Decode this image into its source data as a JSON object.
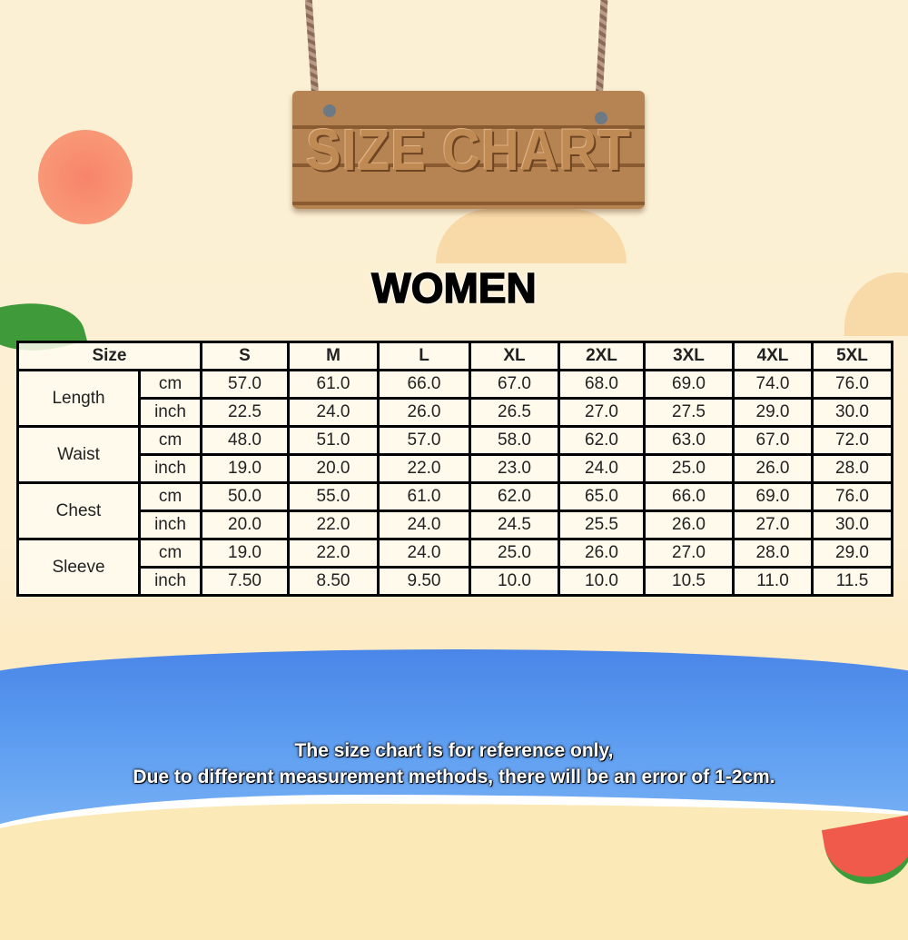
{
  "sign": {
    "text": "SIZE CHART"
  },
  "title": "WOMEN",
  "table": {
    "size_label": "Size",
    "sizes": [
      "S",
      "M",
      "L",
      "XL",
      "2XL",
      "3XL",
      "4XL",
      "5XL"
    ],
    "measurements": [
      {
        "name": "Length",
        "rows": [
          {
            "unit": "cm",
            "values": [
              "57.0",
              "61.0",
              "66.0",
              "67.0",
              "68.0",
              "69.0",
              "74.0",
              "76.0"
            ]
          },
          {
            "unit": "inch",
            "values": [
              "22.5",
              "24.0",
              "26.0",
              "26.5",
              "27.0",
              "27.5",
              "29.0",
              "30.0"
            ]
          }
        ]
      },
      {
        "name": "Waist",
        "rows": [
          {
            "unit": "cm",
            "values": [
              "48.0",
              "51.0",
              "57.0",
              "58.0",
              "62.0",
              "63.0",
              "67.0",
              "72.0"
            ]
          },
          {
            "unit": "inch",
            "values": [
              "19.0",
              "20.0",
              "22.0",
              "23.0",
              "24.0",
              "25.0",
              "26.0",
              "28.0"
            ]
          }
        ]
      },
      {
        "name": "Chest",
        "rows": [
          {
            "unit": "cm",
            "values": [
              "50.0",
              "55.0",
              "61.0",
              "62.0",
              "65.0",
              "66.0",
              "69.0",
              "76.0"
            ]
          },
          {
            "unit": "inch",
            "values": [
              "20.0",
              "22.0",
              "24.0",
              "24.5",
              "25.5",
              "26.0",
              "27.0",
              "30.0"
            ]
          }
        ]
      },
      {
        "name": "Sleeve",
        "rows": [
          {
            "unit": "cm",
            "values": [
              "19.0",
              "22.0",
              "24.0",
              "25.0",
              "26.0",
              "27.0",
              "28.0",
              "29.0"
            ]
          },
          {
            "unit": "inch",
            "values": [
              "7.50",
              "8.50",
              "9.50",
              "10.0",
              "10.0",
              "10.5",
              "11.0",
              "11.5"
            ]
          }
        ]
      }
    ]
  },
  "note": {
    "line1": "The size chart is for reference only,",
    "line2": "Due to different measurement methods, there will be an error of 1-2cm."
  },
  "colors": {
    "sea": "#4a86e8",
    "sun": "#f7846a",
    "background": "#fbf0d4",
    "wood": "#b58452"
  }
}
